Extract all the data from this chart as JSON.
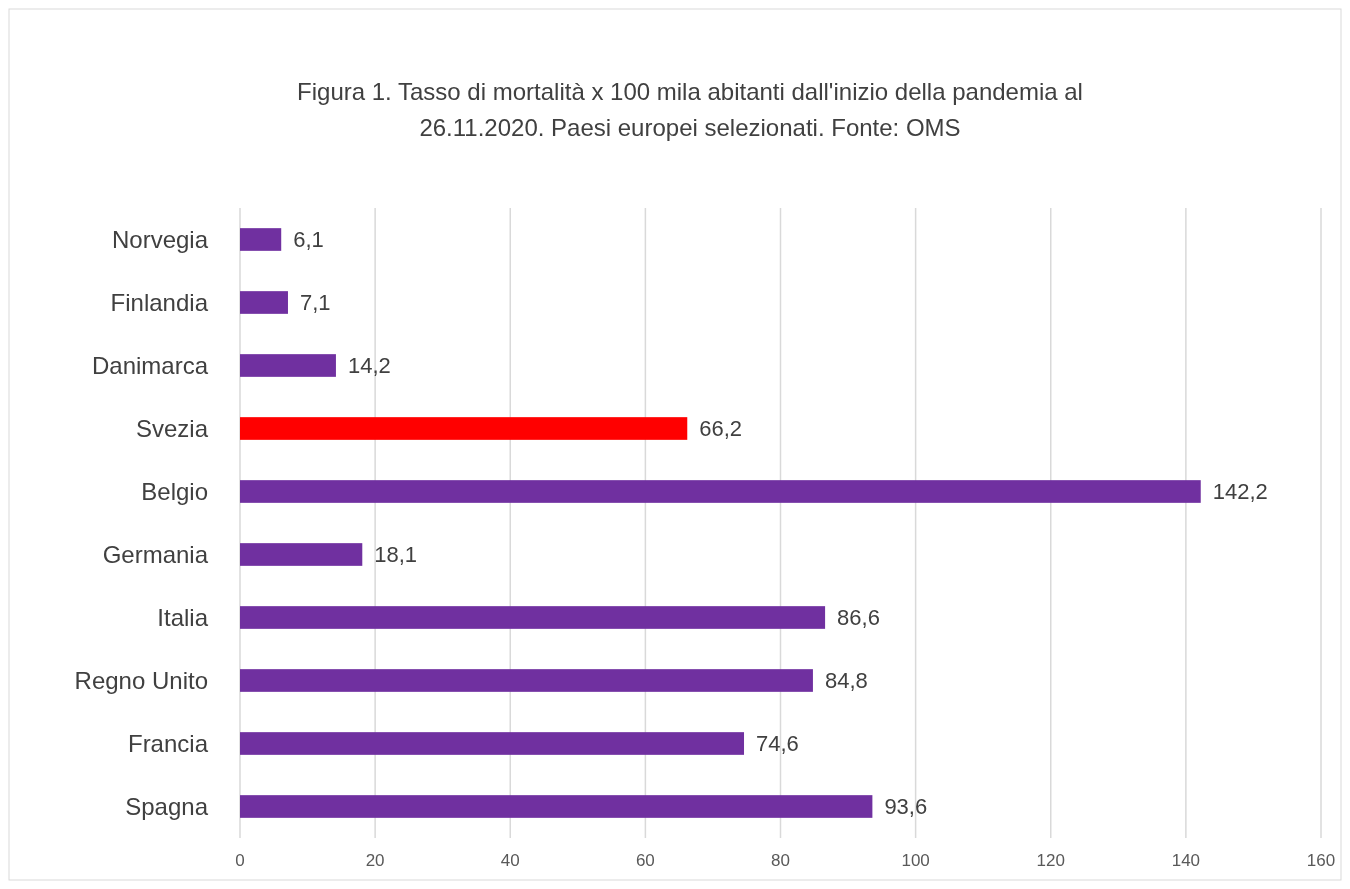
{
  "chart_data": {
    "type": "bar",
    "orientation": "horizontal",
    "title": "Figura 1. Tasso di mortalità x 100 mila abitanti dall'inizio della pandemia al 26.11.2020. Paesi europei selezionati. Fonte: OMS",
    "categories": [
      "Norvegia",
      "Finlandia",
      "Danimarca",
      "Svezia",
      "Belgio",
      "Germania",
      "Italia",
      "Regno Unito",
      "Francia",
      "Spagna"
    ],
    "values": [
      6.1,
      7.1,
      14.2,
      66.2,
      142.2,
      18.1,
      86.6,
      84.8,
      74.6,
      93.6
    ],
    "colors": [
      "#7030a0",
      "#7030a0",
      "#7030a0",
      "#ff0000",
      "#7030a0",
      "#7030a0",
      "#7030a0",
      "#7030a0",
      "#7030a0",
      "#7030a0"
    ],
    "value_labels": [
      "6,1",
      "7,1",
      "14,2",
      "66,2",
      "142,2",
      "18,1",
      "86,6",
      "84,8",
      "74,6",
      "93,6"
    ],
    "xlim": [
      0,
      160
    ],
    "xticks": [
      0,
      20,
      40,
      60,
      80,
      100,
      120,
      140,
      160
    ],
    "grid": "x"
  }
}
